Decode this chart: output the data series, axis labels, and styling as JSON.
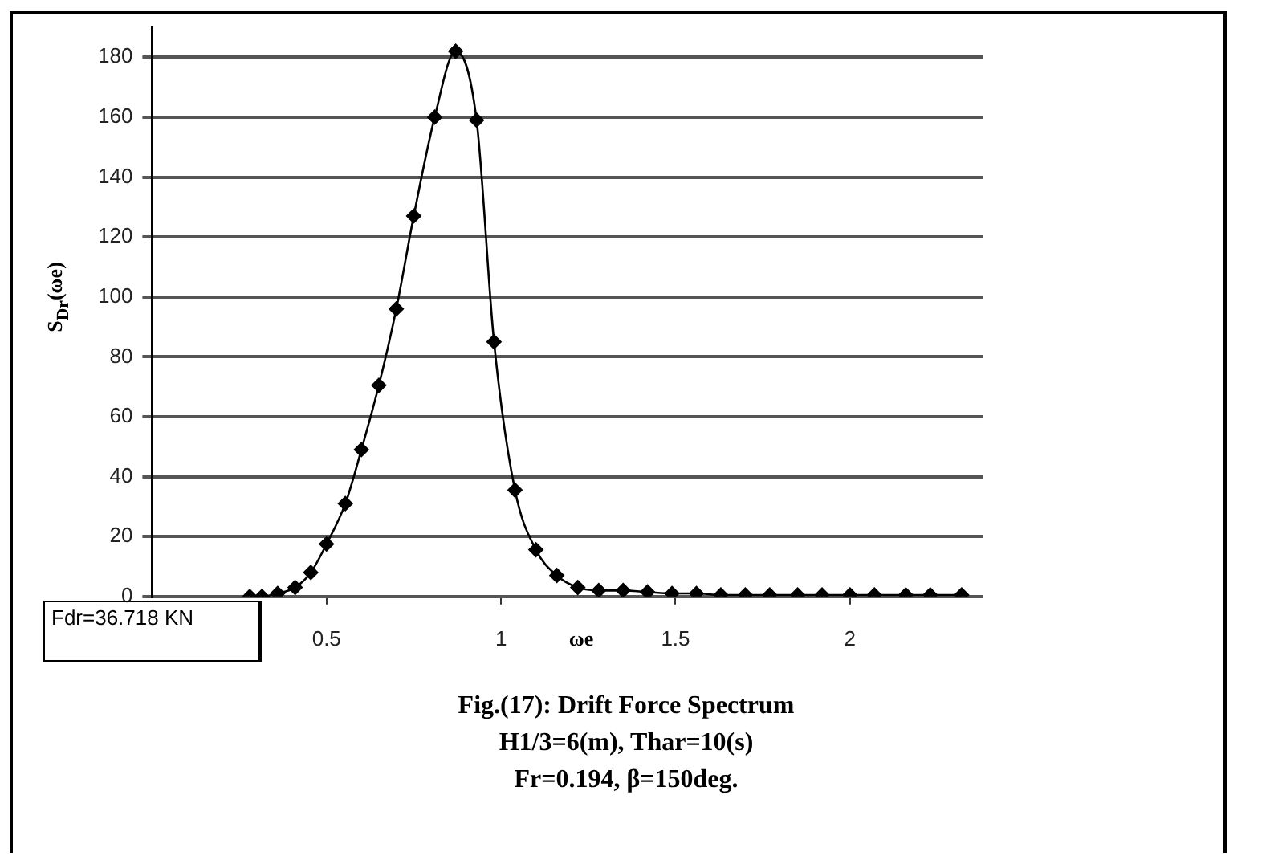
{
  "chart_data": {
    "type": "line",
    "title": "Fig.(17): Drift Force Spectrum",
    "subtitle": "H1/3=6(m), Thar=10(s)",
    "xlabel": "ωe",
    "ylabel": "S$_{Dr}$(ωe)",
    "annotations": [
      "Fr=0.194, β=150deg.",
      "Fdr=36.718 KN"
    ],
    "x": [
      0.28,
      0.315,
      0.36,
      0.41,
      0.455,
      0.5,
      0.554,
      0.6,
      0.65,
      0.7,
      0.75,
      0.81,
      0.87,
      0.93,
      0.98,
      1.04,
      1.1,
      1.16,
      1.22,
      1.28,
      1.35,
      1.42,
      1.49,
      1.56,
      1.63,
      1.7,
      1.77,
      1.85,
      1.92,
      2.0,
      2.07,
      2.16,
      2.23,
      2.32
    ],
    "series": [
      {
        "color": "#000000",
        "values": [
          0,
          0,
          1,
          3,
          8,
          17.5,
          31,
          49,
          70.5,
          96,
          127,
          160,
          182,
          159,
          85,
          35.5,
          15.6,
          7,
          3,
          2,
          2,
          1.5,
          1,
          1,
          0.5,
          0.5,
          0.5,
          0.5,
          0.5,
          0.5,
          0.5,
          0.5,
          0.5,
          0.5
        ]
      }
    ],
    "xlim": [
      0,
      2.38
    ],
    "xticks": [
      0.5,
      1,
      1.5,
      2
    ],
    "ylim": [
      0,
      190
    ],
    "yticks": [
      0,
      20,
      40,
      60,
      80,
      100,
      120,
      140,
      160,
      180
    ],
    "grid": "y",
    "legend": false,
    "marker": "diamond",
    "line_style": "solid"
  }
}
